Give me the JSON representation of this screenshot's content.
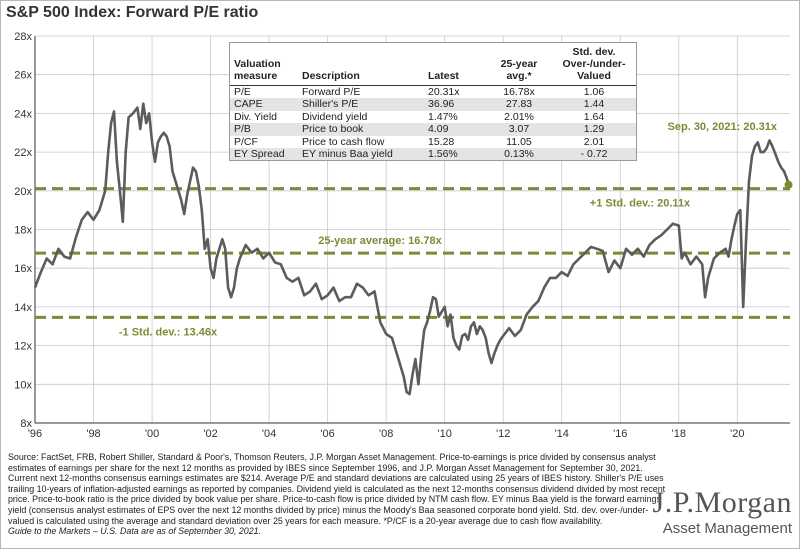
{
  "title": "S&P 500 Index: Forward P/E ratio",
  "table": {
    "headers": [
      "Valuation measure",
      "Description",
      "Latest",
      "25-year avg.*",
      "Std. dev. Over-/under- Valued"
    ],
    "rows": [
      [
        "P/E",
        "Forward P/E",
        "20.31x",
        "16.78x",
        "1.06"
      ],
      [
        "CAPE",
        "Shiller's P/E",
        "36.96",
        "27.83",
        "1.44"
      ],
      [
        "Div. Yield",
        "Dividend yield",
        "1.47%",
        "2.01%",
        "1.64"
      ],
      [
        "P/B",
        "Price to book",
        "4.09",
        "3.07",
        "1.29"
      ],
      [
        "P/CF",
        "Price to cash flow",
        "15.28",
        "11.05",
        "2.01"
      ],
      [
        "EY Spread",
        "EY minus Baa yield",
        "1.56%",
        "0.13%",
        "- 0.72"
      ]
    ]
  },
  "chart_data": {
    "type": "line",
    "title": "S&P 500 Index: Forward P/E ratio",
    "x_ticks": [
      "'96",
      "'98",
      "'00",
      "'02",
      "'04",
      "'06",
      "'08",
      "'10",
      "'12",
      "'14",
      "'16",
      "'18",
      "'20"
    ],
    "y_ticks": [
      "8x",
      "10x",
      "12x",
      "14x",
      "16x",
      "18x",
      "20x",
      "22x",
      "24x",
      "26x",
      "28x"
    ],
    "xlim": [
      1996,
      2021.8
    ],
    "ylim": [
      8,
      28
    ],
    "reference_lines": [
      {
        "label": "+1 Std. dev.: 20.11x",
        "value": 20.11
      },
      {
        "label": "25-year average: 16.78x",
        "value": 16.78
      },
      {
        "label": "-1 Std. dev.: 13.46x",
        "value": 13.46
      }
    ],
    "latest_label": "Sep. 30, 2021: 20.31x",
    "latest_point": {
      "x": 2021.75,
      "y": 20.31
    },
    "series": [
      {
        "values": [
          [
            1996.0,
            15.0
          ],
          [
            1996.2,
            15.8
          ],
          [
            1996.4,
            16.5
          ],
          [
            1996.6,
            16.2
          ],
          [
            1996.8,
            17.0
          ],
          [
            1997.0,
            16.6
          ],
          [
            1997.2,
            16.5
          ],
          [
            1997.4,
            17.6
          ],
          [
            1997.6,
            18.5
          ],
          [
            1997.8,
            18.9
          ],
          [
            1998.0,
            18.5
          ],
          [
            1998.2,
            19.0
          ],
          [
            1998.4,
            20.0
          ],
          [
            1998.5,
            22.0
          ],
          [
            1998.6,
            23.5
          ],
          [
            1998.7,
            24.1
          ],
          [
            1998.8,
            21.5
          ],
          [
            1998.9,
            20.0
          ],
          [
            1999.0,
            18.4
          ],
          [
            1999.1,
            22.0
          ],
          [
            1999.2,
            23.8
          ],
          [
            1999.35,
            24.0
          ],
          [
            1999.5,
            24.3
          ],
          [
            1999.6,
            23.2
          ],
          [
            1999.7,
            24.5
          ],
          [
            1999.8,
            23.5
          ],
          [
            1999.9,
            24.0
          ],
          [
            2000.0,
            22.5
          ],
          [
            2000.1,
            21.5
          ],
          [
            2000.2,
            22.5
          ],
          [
            2000.3,
            22.8
          ],
          [
            2000.4,
            23.0
          ],
          [
            2000.5,
            22.8
          ],
          [
            2000.6,
            22.3
          ],
          [
            2000.7,
            21.0
          ],
          [
            2000.8,
            20.5
          ],
          [
            2000.9,
            20.0
          ],
          [
            2001.0,
            19.5
          ],
          [
            2001.1,
            18.8
          ],
          [
            2001.2,
            19.8
          ],
          [
            2001.3,
            20.5
          ],
          [
            2001.4,
            21.2
          ],
          [
            2001.5,
            21.0
          ],
          [
            2001.6,
            20.2
          ],
          [
            2001.7,
            19.0
          ],
          [
            2001.8,
            17.0
          ],
          [
            2001.9,
            17.5
          ],
          [
            2002.0,
            16.0
          ],
          [
            2002.1,
            15.5
          ],
          [
            2002.2,
            16.5
          ],
          [
            2002.4,
            17.5
          ],
          [
            2002.5,
            17.0
          ],
          [
            2002.6,
            15.0
          ],
          [
            2002.7,
            14.5
          ],
          [
            2002.8,
            15.0
          ],
          [
            2002.9,
            16.0
          ],
          [
            2003.0,
            16.5
          ],
          [
            2003.2,
            17.2
          ],
          [
            2003.4,
            16.8
          ],
          [
            2003.6,
            17.0
          ],
          [
            2003.8,
            16.5
          ],
          [
            2004.0,
            16.8
          ],
          [
            2004.2,
            16.3
          ],
          [
            2004.4,
            16.2
          ],
          [
            2004.6,
            15.5
          ],
          [
            2004.8,
            15.3
          ],
          [
            2005.0,
            15.5
          ],
          [
            2005.2,
            14.6
          ],
          [
            2005.4,
            14.8
          ],
          [
            2005.6,
            15.2
          ],
          [
            2005.8,
            14.4
          ],
          [
            2006.0,
            14.6
          ],
          [
            2006.2,
            15.0
          ],
          [
            2006.4,
            14.3
          ],
          [
            2006.6,
            14.5
          ],
          [
            2006.8,
            14.5
          ],
          [
            2007.0,
            15.2
          ],
          [
            2007.2,
            15.0
          ],
          [
            2007.4,
            14.6
          ],
          [
            2007.6,
            14.8
          ],
          [
            2007.8,
            13.2
          ],
          [
            2008.0,
            12.6
          ],
          [
            2008.2,
            12.4
          ],
          [
            2008.4,
            11.4
          ],
          [
            2008.6,
            10.4
          ],
          [
            2008.7,
            9.6
          ],
          [
            2008.8,
            9.5
          ],
          [
            2008.9,
            10.5
          ],
          [
            2009.0,
            11.3
          ],
          [
            2009.1,
            10.0
          ],
          [
            2009.2,
            11.5
          ],
          [
            2009.3,
            12.8
          ],
          [
            2009.4,
            13.2
          ],
          [
            2009.5,
            13.8
          ],
          [
            2009.6,
            14.5
          ],
          [
            2009.7,
            14.4
          ],
          [
            2009.8,
            13.5
          ],
          [
            2010.0,
            14.0
          ],
          [
            2010.1,
            13.0
          ],
          [
            2010.2,
            13.6
          ],
          [
            2010.3,
            12.4
          ],
          [
            2010.4,
            12.0
          ],
          [
            2010.5,
            11.8
          ],
          [
            2010.6,
            12.5
          ],
          [
            2010.7,
            12.6
          ],
          [
            2010.8,
            12.3
          ],
          [
            2010.9,
            13.0
          ],
          [
            2011.0,
            13.2
          ],
          [
            2011.1,
            12.6
          ],
          [
            2011.2,
            13.0
          ],
          [
            2011.3,
            12.8
          ],
          [
            2011.4,
            12.4
          ],
          [
            2011.5,
            11.6
          ],
          [
            2011.6,
            11.1
          ],
          [
            2011.7,
            11.6
          ],
          [
            2011.8,
            12.0
          ],
          [
            2011.9,
            12.3
          ],
          [
            2012.0,
            12.5
          ],
          [
            2012.2,
            12.9
          ],
          [
            2012.4,
            12.5
          ],
          [
            2012.6,
            12.8
          ],
          [
            2012.8,
            13.6
          ],
          [
            2013.0,
            14.0
          ],
          [
            2013.2,
            14.3
          ],
          [
            2013.4,
            15.0
          ],
          [
            2013.6,
            15.5
          ],
          [
            2013.8,
            15.5
          ],
          [
            2014.0,
            15.8
          ],
          [
            2014.2,
            15.6
          ],
          [
            2014.4,
            16.2
          ],
          [
            2014.6,
            16.5
          ],
          [
            2014.8,
            16.8
          ],
          [
            2015.0,
            17.1
          ],
          [
            2015.2,
            17.0
          ],
          [
            2015.4,
            16.9
          ],
          [
            2015.6,
            15.8
          ],
          [
            2015.8,
            16.4
          ],
          [
            2016.0,
            16.0
          ],
          [
            2016.2,
            17.0
          ],
          [
            2016.4,
            16.7
          ],
          [
            2016.6,
            17.0
          ],
          [
            2016.8,
            16.6
          ],
          [
            2017.0,
            17.2
          ],
          [
            2017.2,
            17.5
          ],
          [
            2017.4,
            17.7
          ],
          [
            2017.6,
            18.0
          ],
          [
            2017.8,
            18.3
          ],
          [
            2018.0,
            18.2
          ],
          [
            2018.1,
            16.5
          ],
          [
            2018.2,
            16.8
          ],
          [
            2018.4,
            16.2
          ],
          [
            2018.6,
            16.6
          ],
          [
            2018.8,
            16.2
          ],
          [
            2018.9,
            14.5
          ],
          [
            2019.0,
            15.5
          ],
          [
            2019.2,
            16.5
          ],
          [
            2019.4,
            16.8
          ],
          [
            2019.6,
            17.0
          ],
          [
            2019.7,
            16.6
          ],
          [
            2019.8,
            17.5
          ],
          [
            2019.9,
            18.2
          ],
          [
            2020.0,
            18.8
          ],
          [
            2020.1,
            19.0
          ],
          [
            2020.2,
            14.0
          ],
          [
            2020.3,
            17.5
          ],
          [
            2020.4,
            20.5
          ],
          [
            2020.5,
            21.8
          ],
          [
            2020.6,
            22.3
          ],
          [
            2020.7,
            22.5
          ],
          [
            2020.8,
            22.0
          ],
          [
            2020.9,
            22.0
          ],
          [
            2021.0,
            22.2
          ],
          [
            2021.1,
            22.6
          ],
          [
            2021.2,
            22.3
          ],
          [
            2021.3,
            21.9
          ],
          [
            2021.4,
            21.5
          ],
          [
            2021.5,
            21.2
          ],
          [
            2021.6,
            21.0
          ],
          [
            2021.7,
            20.6
          ],
          [
            2021.75,
            20.31
          ]
        ]
      }
    ]
  },
  "source": {
    "paragraph": "Source: FactSet, FRB, Robert Shiller, Standard & Poor's, Thomson Reuters, J.P. Morgan Asset Management. Price-to-earnings is price divided by consensus analyst estimates of earnings per share for the next 12 months as provided by IBES since September 1996, and J.P. Morgan Asset Management for September 30, 2021. Current next 12-months consensus earnings estimates are $214. Average P/E and standard deviations are calculated using 25 years of IBES history. Shiller's P/E uses trailing 10-years of inflation-adjusted earnings as reported by companies. Dividend yield is calculated as the next 12-months consensus dividend divided by most recent price. Price-to-book ratio is the price divided by book value per share. Price-to-cash flow is price divided by NTM cash flow. EY minus Baa yield is the forward earnings yield (consensus analyst estimates of EPS over the next 12 months divided by price) minus the Moody's Baa seasoned corporate bond yield. Std. dev. over-/under-valued is calculated using the average and standard deviation over 25 years for each measure. *P/CF is a 20-year average due to cash flow availability.",
    "guide": "Guide to the Markets – U.S. Data are as of September 30, 2021."
  },
  "logo": {
    "main": "J.P.Morgan",
    "sub": "Asset Management"
  },
  "colors": {
    "line": "#5c5c5c",
    "reference": "#7d8a35",
    "label": "#7d8a35",
    "grid": "#c8c8c8"
  }
}
